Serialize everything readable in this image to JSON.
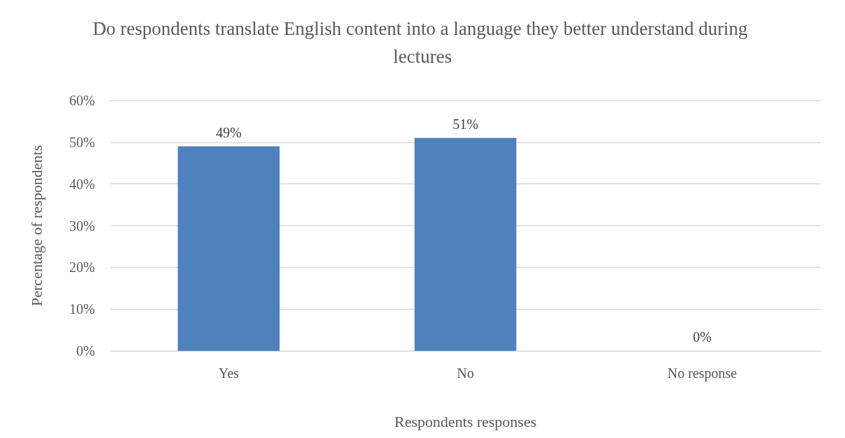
{
  "chart_data": {
    "type": "bar",
    "title": "Do respondents translate English content into a language they better understand during lectures",
    "xlabel": "Respondents responses",
    "ylabel": "Percentage of respondents",
    "categories": [
      "Yes",
      "No",
      "No response"
    ],
    "values": [
      49,
      51,
      0
    ],
    "value_labels": [
      "49%",
      "51%",
      "0%"
    ],
    "color": "#4f81bd",
    "ylim": [
      0,
      60
    ],
    "yticks": [
      {
        "value": 0,
        "label": "0%"
      },
      {
        "value": 10,
        "label": "10%"
      },
      {
        "value": 20,
        "label": "20%"
      },
      {
        "value": 30,
        "label": "30%"
      },
      {
        "value": 40,
        "label": "40%"
      },
      {
        "value": 50,
        "label": "50%"
      },
      {
        "value": 60,
        "label": "60%"
      }
    ],
    "grid": "y"
  }
}
